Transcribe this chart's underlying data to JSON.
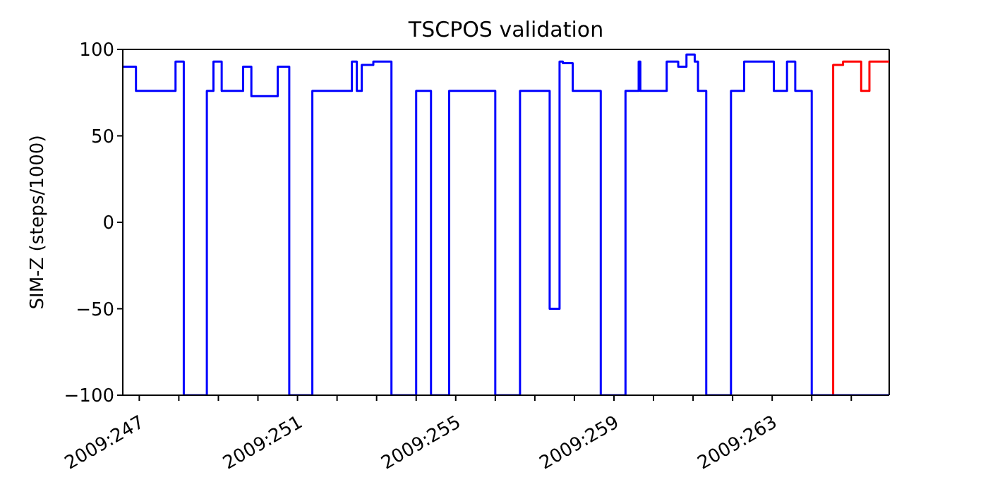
{
  "chart_data": {
    "type": "step",
    "title": "TSCPOS validation",
    "ylabel": "SIM-Z (steps/1000)",
    "xlim": [
      "2009-09-03T14:00",
      "2009-09-22T23:00"
    ],
    "ylim": [
      -100,
      100
    ],
    "yticks": [
      -100,
      -50,
      0,
      50,
      100
    ],
    "xticks": [
      {
        "value": "2009-09-04",
        "label": "2009:247"
      },
      {
        "value": "2009-09-05",
        "label": null
      },
      {
        "value": "2009-09-06",
        "label": null
      },
      {
        "value": "2009-09-07",
        "label": null
      },
      {
        "value": "2009-09-08",
        "label": "2009:251"
      },
      {
        "value": "2009-09-09",
        "label": null
      },
      {
        "value": "2009-09-10",
        "label": null
      },
      {
        "value": "2009-09-11",
        "label": null
      },
      {
        "value": "2009-09-12",
        "label": "2009:255"
      },
      {
        "value": "2009-09-13",
        "label": null
      },
      {
        "value": "2009-09-14",
        "label": null
      },
      {
        "value": "2009-09-15",
        "label": null
      },
      {
        "value": "2009-09-16",
        "label": "2009:259"
      },
      {
        "value": "2009-09-17",
        "label": null
      },
      {
        "value": "2009-09-18",
        "label": null
      },
      {
        "value": "2009-09-19",
        "label": null
      },
      {
        "value": "2009-09-20",
        "label": "2009:263"
      },
      {
        "value": "2009-09-21",
        "label": null
      },
      {
        "value": "2009-09-22",
        "label": null
      }
    ],
    "grid": false,
    "marker": "none",
    "line_style": "solid",
    "series": [
      {
        "color": "#ff0000",
        "x": [
          "2009-09-21T13:00",
          "2009-09-21T13:00",
          "2009-09-21T19:00",
          "2009-09-22T06:00",
          "2009-09-22T11:00",
          "2009-09-22T23:00"
        ],
        "values": [
          -100,
          91,
          93,
          76,
          93,
          93
        ]
      },
      {
        "color": "#0000ff",
        "x": [
          "2009-09-03T14:00",
          "2009-09-03T22:00",
          "2009-09-04T22:00",
          "2009-09-05T03:00",
          "2009-09-05T17:00",
          "2009-09-05T21:00",
          "2009-09-06T02:00",
          "2009-09-06T15:00",
          "2009-09-06T20:00",
          "2009-09-07T12:00",
          "2009-09-07T19:00",
          "2009-09-08T09:00",
          "2009-09-09T09:00",
          "2009-09-09T12:00",
          "2009-09-09T15:00",
          "2009-09-09T22:00",
          "2009-09-10T09:00",
          "2009-09-11T00:00",
          "2009-09-11T09:00",
          "2009-09-11T20:00",
          "2009-09-13T00:00",
          "2009-09-13T15:00",
          "2009-09-14T09:00",
          "2009-09-14T15:00",
          "2009-09-14T17:00",
          "2009-09-14T23:00",
          "2009-09-15T16:00",
          "2009-09-16T07:00",
          "2009-09-16T15:00",
          "2009-09-16T16:00",
          "2009-09-17T08:00",
          "2009-09-17T15:00",
          "2009-09-17T20:00",
          "2009-09-18T01:00",
          "2009-09-18T03:00",
          "2009-09-18T08:00",
          "2009-09-18T23:00",
          "2009-09-19T07:00",
          "2009-09-20T01:00",
          "2009-09-20T09:00",
          "2009-09-20T14:00",
          "2009-09-21T00:00",
          "2009-09-22T23:00"
        ],
        "values": [
          90,
          76,
          93,
          -100,
          76,
          93,
          76,
          90,
          73,
          90,
          -100,
          76,
          93,
          76,
          91,
          93,
          -100,
          76,
          -100,
          76,
          -100,
          76,
          -50,
          93,
          92,
          76,
          -100,
          76,
          93,
          76,
          93,
          90,
          97,
          93,
          76,
          -100,
          76,
          93,
          76,
          93,
          76,
          -100,
          -100
        ]
      }
    ]
  }
}
